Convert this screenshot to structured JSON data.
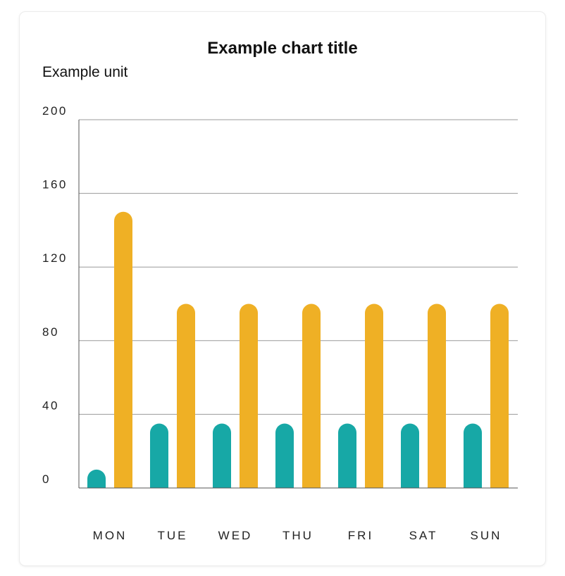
{
  "chart_data": {
    "type": "bar",
    "title": "Example chart title",
    "ylabel": "Example unit",
    "xlabel": "",
    "categories": [
      "MON",
      "TUE",
      "WED",
      "THU",
      "FRI",
      "SAT",
      "SUN"
    ],
    "series": [
      {
        "color": "#17a8a6",
        "values": [
          10,
          35,
          35,
          35,
          35,
          35,
          35
        ]
      },
      {
        "color": "#efb025",
        "values": [
          150,
          100,
          100,
          100,
          100,
          100,
          100
        ]
      }
    ],
    "ylim": [
      0,
      200
    ],
    "yticks": [
      0,
      40,
      80,
      120,
      160,
      200
    ],
    "grid": true
  }
}
